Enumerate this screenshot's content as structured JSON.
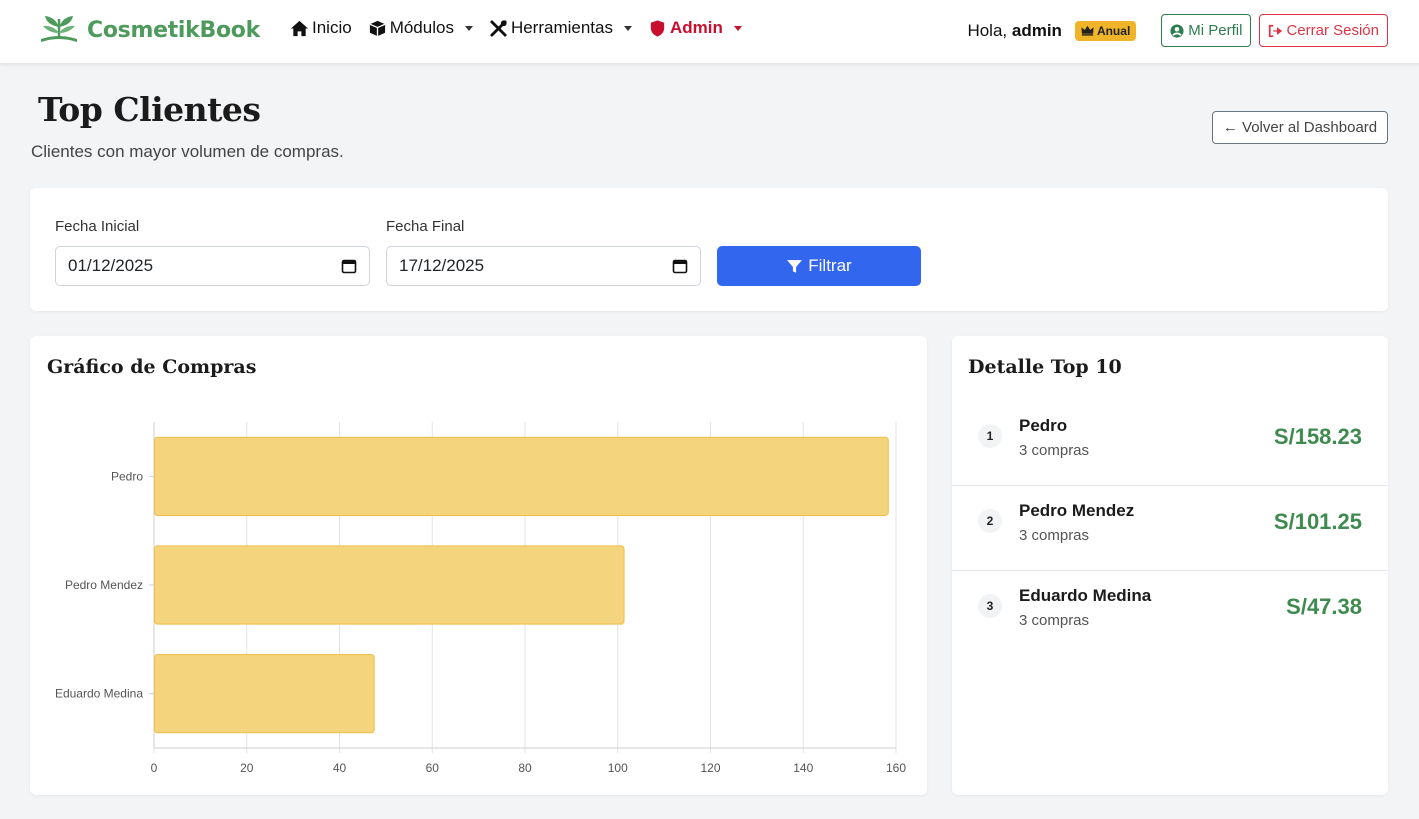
{
  "navbar": {
    "brand": "CosmetikBook",
    "links": [
      {
        "label": "Inicio",
        "icon": "home-icon"
      },
      {
        "label": "Módulos",
        "icon": "box-icon"
      },
      {
        "label": "Herramientas",
        "icon": "tools-icon"
      },
      {
        "label": "Admin",
        "icon": "shield-icon"
      }
    ],
    "greeting_prefix": "Hola,",
    "username": "admin",
    "plan_badge": "Anual",
    "profile_button": "Mi Perfil",
    "logout_button": "Cerrar Sesión"
  },
  "header": {
    "title": "Top Clientes",
    "subtitle": "Clientes con mayor volumen de compras.",
    "back_button": "← Volver al Dashboard"
  },
  "filters": {
    "start_label": "Fecha Inicial",
    "start_value": "01/12/2025",
    "end_label": "Fecha Final",
    "end_value": "17/12/2025",
    "filter_button": "Filtrar"
  },
  "chart_card": {
    "title": "Gráfico de Compras"
  },
  "chart_data": {
    "type": "bar",
    "orientation": "horizontal",
    "categories": [
      "Pedro",
      "Pedro Mendez",
      "Eduardo Medina"
    ],
    "values": [
      158.23,
      101.25,
      47.38
    ],
    "xlim": [
      0,
      160
    ],
    "xticks": [
      0,
      20,
      40,
      60,
      80,
      100,
      120,
      140,
      160
    ],
    "grid": true,
    "bar_color": "#f5d47e",
    "bar_border": "#eec04a"
  },
  "detail": {
    "title": "Detalle Top 10",
    "items": [
      {
        "rank": "1",
        "name": "Pedro",
        "count": "3 compras",
        "amount": "S/158.23"
      },
      {
        "rank": "2",
        "name": "Pedro Mendez",
        "count": "3 compras",
        "amount": "S/101.25"
      },
      {
        "rank": "3",
        "name": "Eduardo Medina",
        "count": "3 compras",
        "amount": "S/47.38"
      }
    ]
  },
  "colors": {
    "brand": "#4e9a5c",
    "primary": "#3366ee",
    "danger": "#dc3545",
    "amount": "#3f8a4f"
  }
}
